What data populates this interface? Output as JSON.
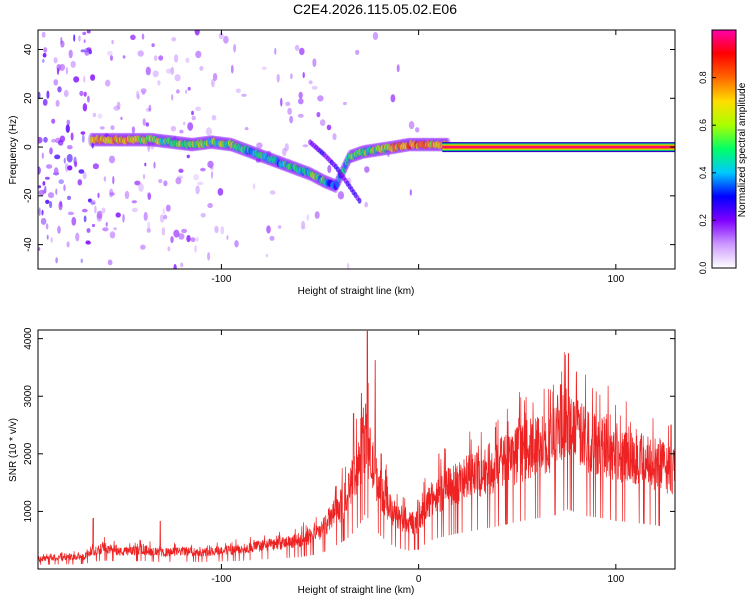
{
  "title": "C2E4.2026.115.05.02.E06",
  "chart_data": [
    {
      "type": "heatmap",
      "xlabel": "Height of straight line (km)",
      "ylabel": "Frequency (Hz)",
      "xlim": [
        -193,
        130
      ],
      "ylim": [
        -50,
        48
      ],
      "xticks": [
        -100,
        0,
        100
      ],
      "xtick_labels": [
        "-100",
        "",
        "100"
      ],
      "yticks": [
        -40,
        -20,
        0,
        20,
        40
      ],
      "ytick_labels": [
        "-40",
        "-20",
        "0",
        "20",
        "40"
      ],
      "grid": false,
      "colorbar": {
        "label": "Normalized spectral amplitude",
        "range": [
          0,
          1
        ],
        "ticks": [
          0.0,
          0.2,
          0.4,
          0.6,
          0.8
        ],
        "tick_labels": [
          "0.0",
          "0.2",
          "0.4",
          "0.6",
          "0.8"
        ],
        "colors": [
          "#ffffff",
          "#cc99ff",
          "#7f00ff",
          "#0000ff",
          "#00c8ff",
          "#00ff66",
          "#aaff00",
          "#ffdd00",
          "#ff6600",
          "#ff0000",
          "#ff00aa"
        ]
      },
      "ridge": {
        "x": [
          -166,
          -155,
          -145,
          -135,
          -125,
          -115,
          -105,
          -95,
          -85,
          -75,
          -65,
          -55,
          -48,
          -42,
          -35,
          -28,
          -20,
          -12,
          -5,
          0,
          5,
          10,
          15
        ],
        "y": [
          3,
          3,
          3,
          3,
          2,
          1,
          2,
          1,
          -2,
          -5,
          -8,
          -11,
          -14,
          -16,
          -4,
          -2,
          -1,
          0,
          1,
          1,
          1,
          1,
          1
        ],
        "amplitude": [
          0.7,
          0.75,
          0.65,
          0.6,
          0.5,
          0.55,
          0.5,
          0.55,
          0.45,
          0.4,
          0.45,
          0.5,
          0.45,
          0.35,
          0.5,
          0.55,
          0.6,
          0.7,
          0.75,
          0.75,
          0.7,
          0.65,
          0.6
        ]
      },
      "branch": {
        "x": [
          -55,
          -48,
          -42,
          -36,
          -30
        ],
        "y": [
          2,
          -3,
          -8,
          -15,
          -22
        ]
      },
      "carrier": {
        "x_start": 12,
        "x_end": 130,
        "y": 0,
        "amplitude": 0.95
      }
    },
    {
      "type": "line",
      "xlabel": "Height of straight line (km)",
      "ylabel": "SNR (10 * v/v)",
      "xlim": [
        -193,
        130
      ],
      "ylim": [
        0,
        4150
      ],
      "xticks": [
        -100,
        0,
        100
      ],
      "xtick_labels": [
        "-100",
        "0",
        "100"
      ],
      "yticks": [
        1000,
        2000,
        3000,
        4000
      ],
      "ytick_labels": [
        "1000",
        "2000",
        "3000",
        "4000"
      ],
      "grid": false,
      "series": [
        {
          "color": "#ee2222",
          "envelope": {
            "x": [
              -193,
              -180,
              -170,
              -160,
              -150,
              -140,
              -130,
              -120,
              -110,
              -100,
              -90,
              -80,
              -70,
              -60,
              -50,
              -45,
              -40,
              -35,
              -30,
              -27,
              -25,
              -23,
              -20,
              -15,
              -10,
              -5,
              0,
              5,
              10,
              20,
              30,
              40,
              50,
              60,
              70,
              75,
              80,
              85,
              90,
              100,
              110,
              120,
              130
            ],
            "y": [
              180,
              200,
              220,
              380,
              300,
              350,
              290,
              320,
              300,
              330,
              350,
              420,
              450,
              520,
              650,
              900,
              1100,
              1400,
              1900,
              2400,
              2100,
              1800,
              1500,
              1100,
              900,
              800,
              850,
              1200,
              1350,
              1550,
              1700,
              1850,
              2050,
              2200,
              2350,
              2600,
              2450,
              2300,
              2250,
              2100,
              2000,
              1900,
              1750
            ]
          },
          "spikes": [
            {
              "x": -26,
              "y": 4130
            },
            {
              "x": -29,
              "y": 3050
            },
            {
              "x": -22,
              "y": 3620
            },
            {
              "x": -33,
              "y": 2700
            },
            {
              "x": -165,
              "y": 880
            },
            {
              "x": -131,
              "y": 830
            },
            {
              "x": -19,
              "y": 2000
            },
            {
              "x": 76,
              "y": 3740
            },
            {
              "x": 80,
              "y": 3420
            },
            {
              "x": 72,
              "y": 3200
            },
            {
              "x": 128,
              "y": 2500
            }
          ]
        }
      ]
    }
  ]
}
